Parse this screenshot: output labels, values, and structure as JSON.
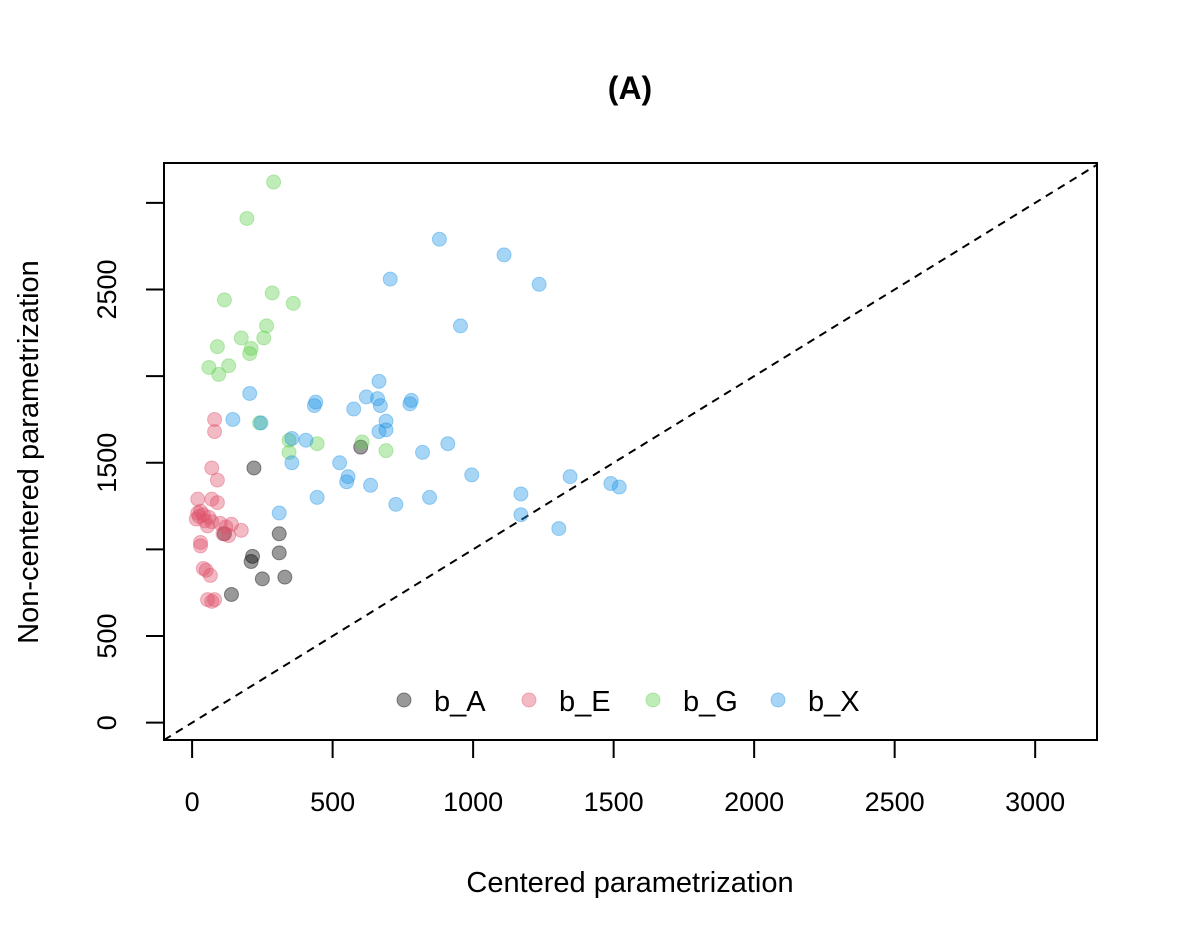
{
  "chart_data": {
    "type": "scatter",
    "title": "(A)",
    "xlabel": "Centered parametrization",
    "ylabel": "Non-centered parametrization",
    "xlim": [
      -100,
      3220
    ],
    "ylim": [
      -100,
      3230
    ],
    "x_ticks": [
      0,
      500,
      1000,
      1500,
      2000,
      2500,
      3000
    ],
    "y_ticks": [
      0,
      500,
      1500,
      2500
    ],
    "y_tick_marks": [
      0,
      500,
      1000,
      1500,
      2000,
      2500,
      3000
    ],
    "reference_line": "y = x (dashed)",
    "grid": false,
    "legend_position": "bottom-center",
    "series": [
      {
        "name": "b_A",
        "color": "#000000",
        "points": [
          [
            220,
            1470
          ],
          [
            600,
            1590
          ],
          [
            115,
            1090
          ],
          [
            310,
            1090
          ],
          [
            215,
            960
          ],
          [
            310,
            980
          ],
          [
            210,
            930
          ],
          [
            330,
            840
          ],
          [
            250,
            830
          ],
          [
            140,
            740
          ]
        ]
      },
      {
        "name": "b_E",
        "color": "#DF536B",
        "points": [
          [
            80,
            1750
          ],
          [
            80,
            1680
          ],
          [
            70,
            1470
          ],
          [
            90,
            1400
          ],
          [
            20,
            1290
          ],
          [
            70,
            1290
          ],
          [
            90,
            1270
          ],
          [
            30,
            1220
          ],
          [
            20,
            1210
          ],
          [
            40,
            1200
          ],
          [
            25,
            1190
          ],
          [
            60,
            1185
          ],
          [
            15,
            1175
          ],
          [
            45,
            1165
          ],
          [
            70,
            1160
          ],
          [
            100,
            1150
          ],
          [
            140,
            1145
          ],
          [
            55,
            1135
          ],
          [
            120,
            1130
          ],
          [
            175,
            1110
          ],
          [
            110,
            1090
          ],
          [
            130,
            1080
          ],
          [
            30,
            1040
          ],
          [
            30,
            1020
          ],
          [
            40,
            890
          ],
          [
            50,
            880
          ],
          [
            65,
            850
          ],
          [
            55,
            710
          ],
          [
            80,
            710
          ],
          [
            70,
            700
          ]
        ]
      },
      {
        "name": "b_G",
        "color": "#61D04F",
        "points": [
          [
            290,
            3120
          ],
          [
            195,
            2910
          ],
          [
            285,
            2480
          ],
          [
            115,
            2440
          ],
          [
            360,
            2420
          ],
          [
            265,
            2290
          ],
          [
            175,
            2220
          ],
          [
            255,
            2220
          ],
          [
            90,
            2170
          ],
          [
            210,
            2160
          ],
          [
            205,
            2130
          ],
          [
            60,
            2050
          ],
          [
            130,
            2060
          ],
          [
            95,
            2010
          ],
          [
            240,
            1730
          ],
          [
            345,
            1630
          ],
          [
            605,
            1620
          ],
          [
            445,
            1610
          ],
          [
            690,
            1570
          ],
          [
            345,
            1560
          ]
        ]
      },
      {
        "name": "b_X",
        "color": "#2297E6",
        "points": [
          [
            880,
            2790
          ],
          [
            1110,
            2700
          ],
          [
            705,
            2560
          ],
          [
            1235,
            2530
          ],
          [
            955,
            2290
          ],
          [
            665,
            1970
          ],
          [
            205,
            1900
          ],
          [
            620,
            1880
          ],
          [
            660,
            1870
          ],
          [
            780,
            1860
          ],
          [
            440,
            1850
          ],
          [
            775,
            1840
          ],
          [
            670,
            1830
          ],
          [
            435,
            1830
          ],
          [
            575,
            1810
          ],
          [
            145,
            1750
          ],
          [
            690,
            1740
          ],
          [
            245,
            1730
          ],
          [
            665,
            1680
          ],
          [
            690,
            1690
          ],
          [
            355,
            1640
          ],
          [
            405,
            1630
          ],
          [
            910,
            1610
          ],
          [
            820,
            1560
          ],
          [
            355,
            1500
          ],
          [
            525,
            1500
          ],
          [
            995,
            1430
          ],
          [
            555,
            1420
          ],
          [
            1345,
            1420
          ],
          [
            550,
            1390
          ],
          [
            635,
            1370
          ],
          [
            1490,
            1380
          ],
          [
            1520,
            1360
          ],
          [
            1170,
            1320
          ],
          [
            445,
            1300
          ],
          [
            845,
            1300
          ],
          [
            725,
            1260
          ],
          [
            310,
            1210
          ],
          [
            1170,
            1200
          ],
          [
            1305,
            1120
          ]
        ]
      }
    ]
  }
}
